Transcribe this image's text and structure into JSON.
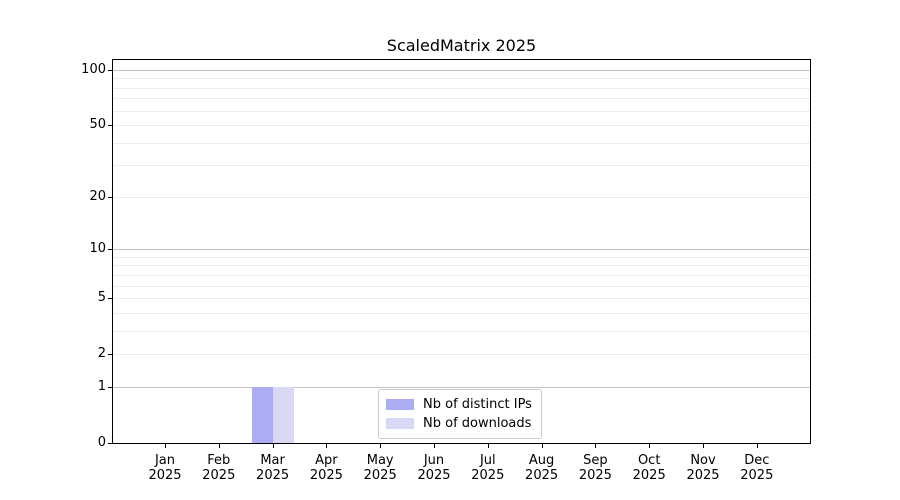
{
  "chart_data": {
    "type": "bar",
    "title": "ScaledMatrix 2025",
    "categories": [
      {
        "month": "Jan",
        "year": "2025"
      },
      {
        "month": "Feb",
        "year": "2025"
      },
      {
        "month": "Mar",
        "year": "2025"
      },
      {
        "month": "Apr",
        "year": "2025"
      },
      {
        "month": "May",
        "year": "2025"
      },
      {
        "month": "Jun",
        "year": "2025"
      },
      {
        "month": "Jul",
        "year": "2025"
      },
      {
        "month": "Aug",
        "year": "2025"
      },
      {
        "month": "Sep",
        "year": "2025"
      },
      {
        "month": "Oct",
        "year": "2025"
      },
      {
        "month": "Nov",
        "year": "2025"
      },
      {
        "month": "Dec",
        "year": "2025"
      }
    ],
    "series": [
      {
        "name": "Nb of distinct IPs",
        "color": "#acacf2",
        "values": [
          0,
          0,
          1,
          0,
          0,
          0,
          0,
          0,
          0,
          0,
          0,
          0
        ]
      },
      {
        "name": "Nb of downloads",
        "color": "#d9d9f5",
        "values": [
          0,
          0,
          1,
          0,
          0,
          0,
          0,
          0,
          0,
          0,
          0,
          0
        ]
      }
    ],
    "y_axis": {
      "scale": "log1p",
      "ylim": [
        0,
        100
      ],
      "tick_values": [
        100,
        50,
        20,
        10,
        5,
        2,
        1,
        0
      ],
      "major_gridlines": [
        1,
        10,
        100
      ],
      "minor_gridlines": [
        2,
        3,
        4,
        5,
        6,
        7,
        8,
        9,
        20,
        30,
        40,
        50,
        60,
        70,
        80,
        90
      ]
    },
    "xlabel": "",
    "ylabel": "",
    "grid": true,
    "legend": {
      "position": "lower center"
    }
  }
}
